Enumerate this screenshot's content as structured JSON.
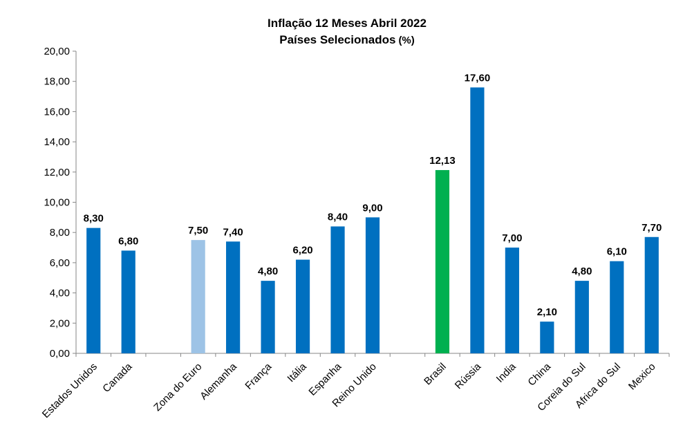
{
  "chart_data": {
    "type": "bar",
    "title": "Inflação 12 Meses Abril 2022",
    "subtitle": "Países Selecionados",
    "subtitle_unit": "(%)",
    "xlabel": "",
    "ylabel": "",
    "ylim": [
      0,
      20
    ],
    "yticks": [
      "0,00",
      "2,00",
      "4,00",
      "6,00",
      "8,00",
      "10,00",
      "12,00",
      "14,00",
      "16,00",
      "18,00",
      "20,00"
    ],
    "grid": false,
    "legend": "none",
    "categories": [
      "Estados Unidos",
      "Canada",
      "",
      "Zona do Euro",
      "Alemanha",
      "França",
      "Itália",
      "Espanha",
      "Reino Unido",
      "",
      "Brasil",
      "Rússia",
      "India",
      "China",
      "Coreia do Sul",
      "Africa do Sul",
      "Mexico"
    ],
    "values": [
      8.3,
      6.8,
      null,
      7.5,
      7.4,
      4.8,
      6.2,
      8.4,
      9.0,
      null,
      12.13,
      17.6,
      7.0,
      2.1,
      4.8,
      6.1,
      7.7
    ],
    "data_labels": [
      "8,30",
      "6,80",
      "",
      "7,50",
      "7,40",
      "4,80",
      "6,20",
      "8,40",
      "9,00",
      "",
      "12,13",
      "17,60",
      "7,00",
      "2,10",
      "4,80",
      "6,10",
      "7,70"
    ],
    "colors": [
      "#0070C0",
      "#0070C0",
      "",
      "#9DC3E6",
      "#0070C0",
      "#0070C0",
      "#0070C0",
      "#0070C0",
      "#0070C0",
      "",
      "#00B050",
      "#0070C0",
      "#0070C0",
      "#0070C0",
      "#0070C0",
      "#0070C0",
      "#0070C0"
    ]
  }
}
